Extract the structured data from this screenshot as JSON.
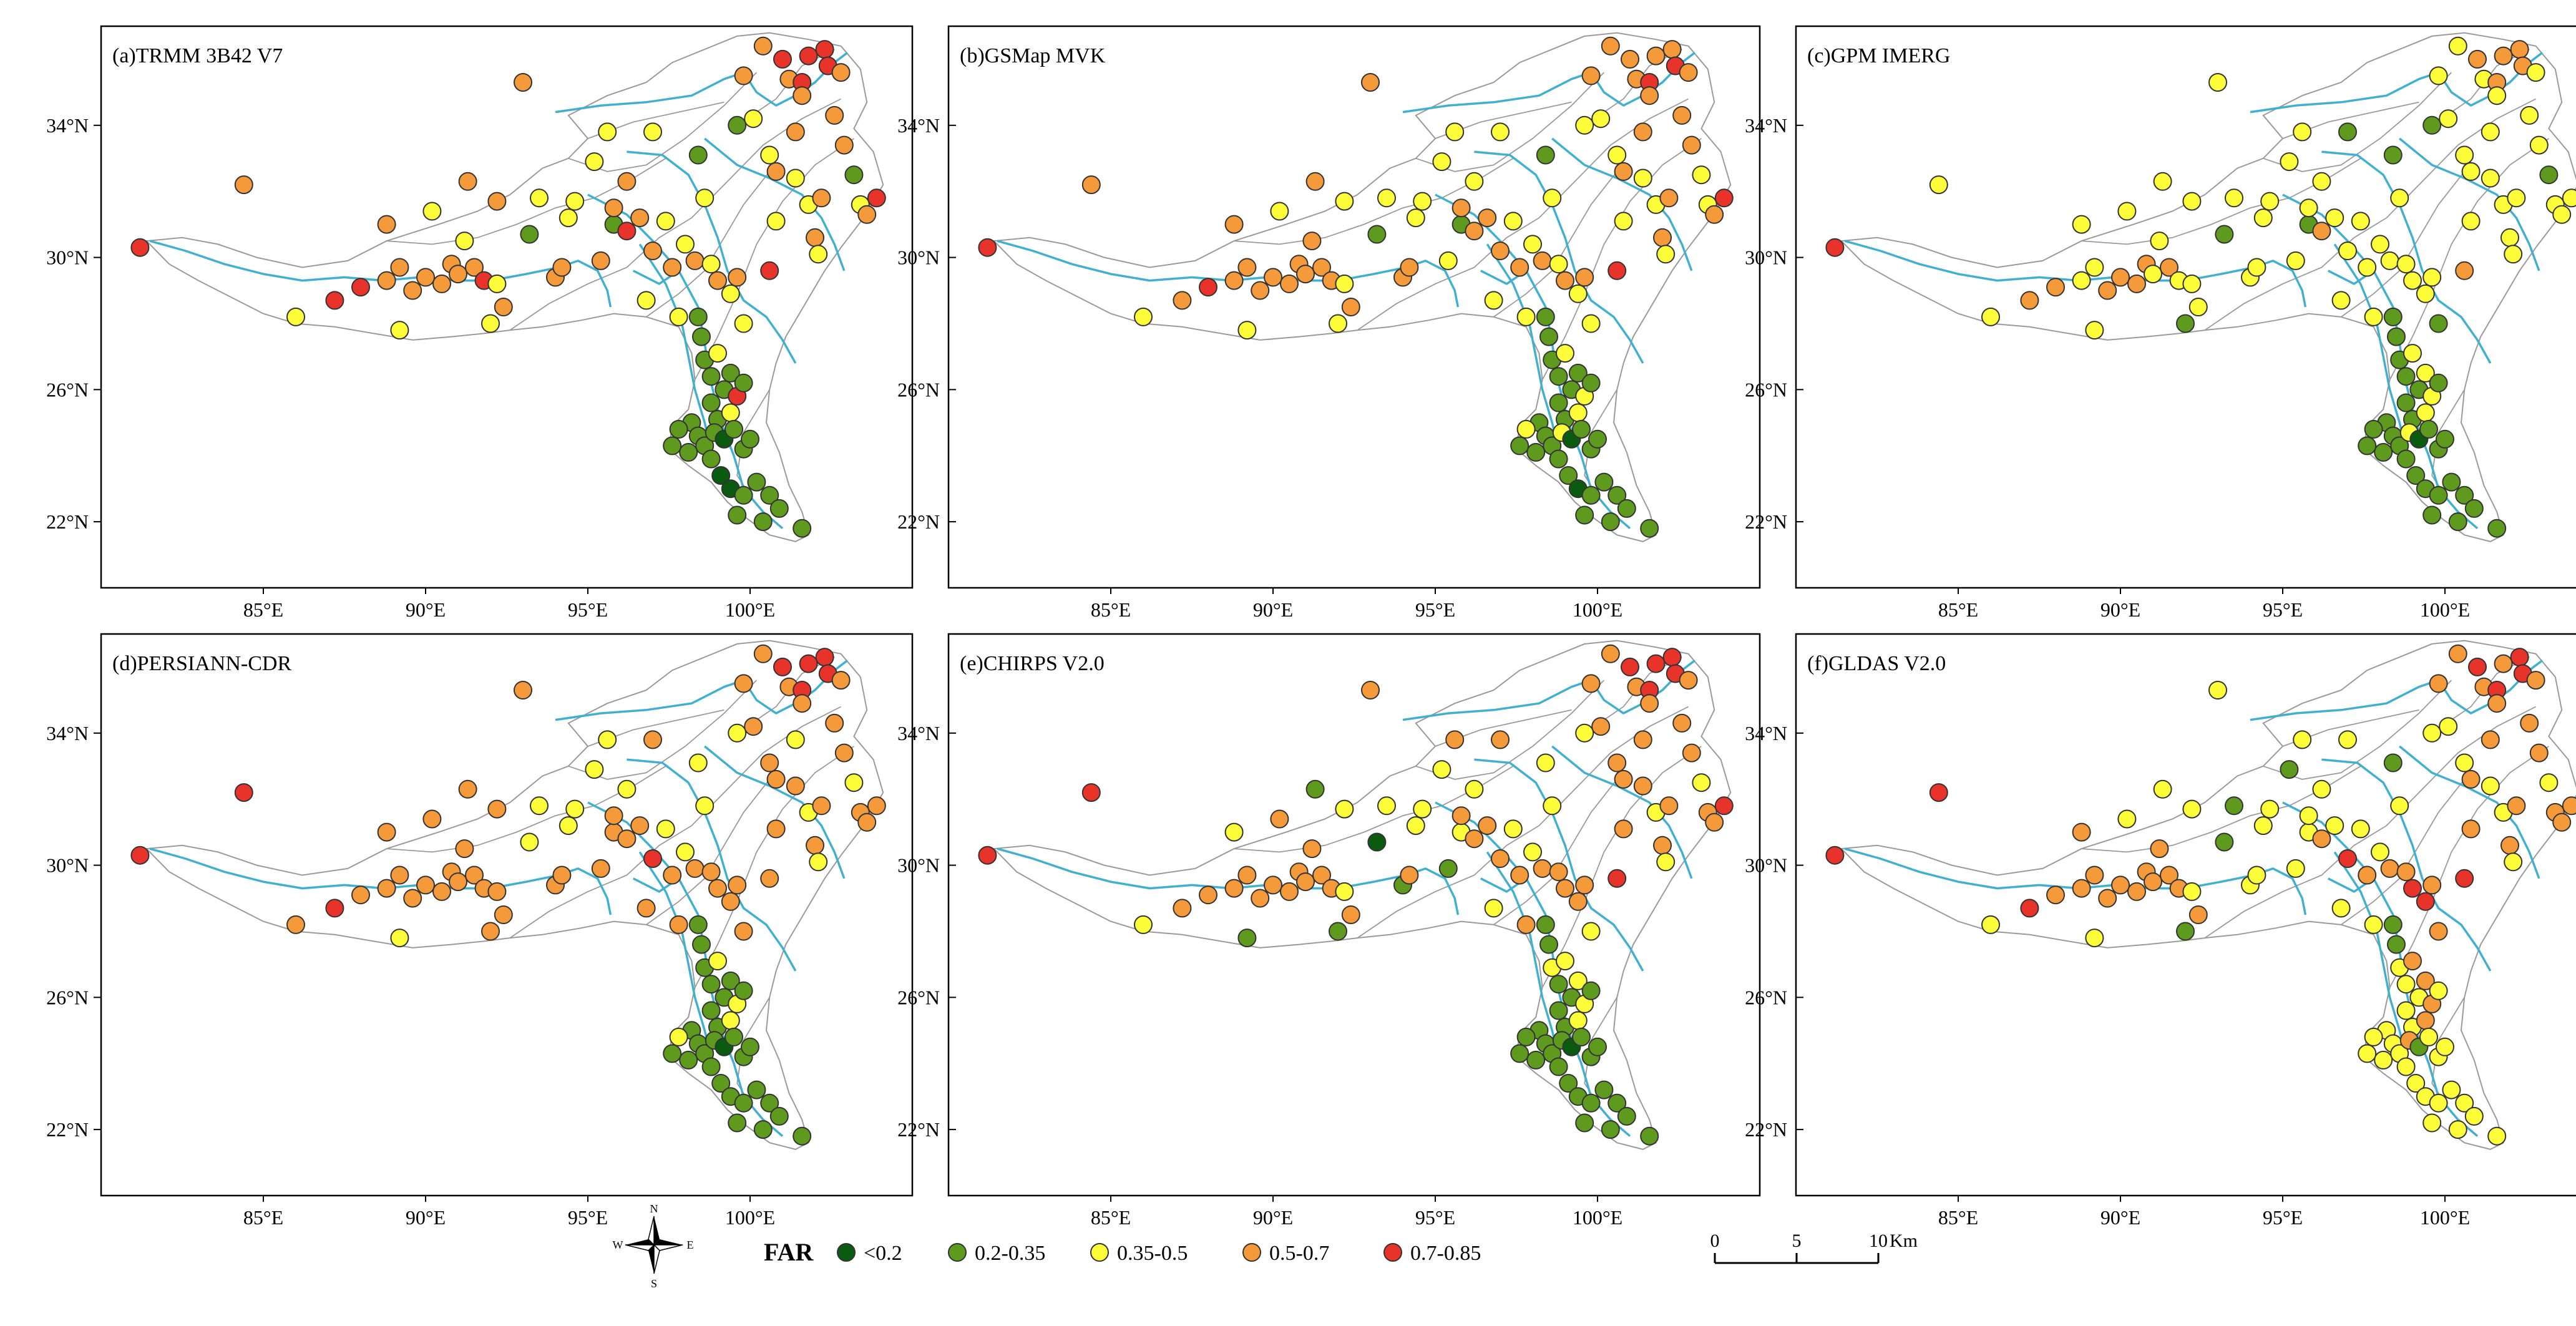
{
  "figure": {
    "tick_labels": {
      "lat": [
        "34°N",
        "30°N",
        "26°N",
        "22°N"
      ],
      "lon": [
        "85°E",
        "90°E",
        "95°E",
        "100°E"
      ]
    },
    "panels": [
      {
        "id": "a",
        "title": "(a)TRMM 3B42 V7"
      },
      {
        "id": "b",
        "title": "(b)GSMap MVK"
      },
      {
        "id": "c",
        "title": "(c)GPM IMERG"
      },
      {
        "id": "d",
        "title": "(d)PERSIANN-CDR"
      },
      {
        "id": "e",
        "title": "(e)CHIRPS V2.0"
      },
      {
        "id": "f",
        "title": "(f)GLDAS V2.0"
      }
    ],
    "colors": {
      "river": "#3fb0d0",
      "boundary": "#9a9a9a",
      "classes": [
        "#0a5a10",
        "#5e9a1e",
        "#fdfd3a",
        "#f49a3a",
        "#e8332a"
      ]
    }
  },
  "legend": {
    "title": "FAR",
    "items": [
      {
        "label": "<0.2",
        "color": "#0a5a10"
      },
      {
        "label": "0.2-0.35",
        "color": "#5e9a1e"
      },
      {
        "label": "0.35-0.5",
        "color": "#fdfd3a"
      },
      {
        "label": "0.5-0.7",
        "color": "#f49a3a"
      },
      {
        "label": "0.7-0.85",
        "color": "#e8332a"
      }
    ]
  },
  "compass": {
    "n": "N",
    "s": "S",
    "e": "E",
    "w": "W"
  },
  "scale_bar": {
    "labels": [
      "0",
      "5",
      "10"
    ],
    "unit": "Km"
  },
  "stations": [
    [
      81.2,
      30.3
    ],
    [
      84.4,
      32.2
    ],
    [
      86.0,
      28.2
    ],
    [
      87.2,
      28.7
    ],
    [
      88.0,
      29.1
    ],
    [
      88.8,
      29.3
    ],
    [
      88.8,
      31.0
    ],
    [
      89.2,
      29.7
    ],
    [
      89.2,
      27.8
    ],
    [
      89.6,
      29.0
    ],
    [
      90.0,
      29.4
    ],
    [
      90.2,
      31.4
    ],
    [
      90.5,
      29.2
    ],
    [
      90.8,
      29.8
    ],
    [
      91.0,
      29.5
    ],
    [
      91.2,
      30.5
    ],
    [
      91.3,
      32.3
    ],
    [
      91.5,
      29.7
    ],
    [
      91.8,
      29.3
    ],
    [
      92.2,
      31.7
    ],
    [
      92.0,
      28.0
    ],
    [
      92.4,
      28.5
    ],
    [
      92.2,
      29.2
    ],
    [
      93.0,
      35.3
    ],
    [
      93.2,
      30.7
    ],
    [
      93.5,
      31.8
    ],
    [
      94.0,
      29.4
    ],
    [
      94.2,
      29.7
    ],
    [
      94.4,
      31.2
    ],
    [
      94.6,
      31.7
    ],
    [
      95.2,
      32.9
    ],
    [
      95.4,
      29.9
    ],
    [
      95.6,
      33.8
    ],
    [
      95.8,
      31.0
    ],
    [
      95.8,
      31.5
    ],
    [
      96.2,
      30.8
    ],
    [
      96.2,
      32.3
    ],
    [
      96.6,
      31.2
    ],
    [
      96.8,
      28.7
    ],
    [
      97.0,
      30.2
    ],
    [
      97.0,
      33.8
    ],
    [
      97.4,
      31.1
    ],
    [
      97.6,
      29.7
    ],
    [
      97.8,
      28.2
    ],
    [
      98.0,
      30.4
    ],
    [
      98.3,
      29.9
    ],
    [
      98.4,
      33.1
    ],
    [
      98.6,
      31.8
    ],
    [
      98.8,
      29.8
    ],
    [
      99.0,
      29.3
    ],
    [
      99.4,
      28.9
    ],
    [
      99.6,
      29.4
    ],
    [
      99.6,
      34.0
    ],
    [
      99.8,
      35.5
    ],
    [
      99.8,
      28.0
    ],
    [
      100.1,
      34.2
    ],
    [
      100.4,
      36.4
    ],
    [
      100.6,
      29.6
    ],
    [
      100.6,
      33.1
    ],
    [
      100.8,
      32.6
    ],
    [
      100.8,
      31.1
    ],
    [
      101.0,
      36.0
    ],
    [
      101.2,
      35.4
    ],
    [
      101.4,
      32.4
    ],
    [
      101.4,
      33.8
    ],
    [
      101.6,
      35.3
    ],
    [
      101.6,
      34.9
    ],
    [
      101.8,
      36.1
    ],
    [
      101.8,
      31.6
    ],
    [
      102.0,
      30.6
    ],
    [
      102.1,
      30.1
    ],
    [
      102.2,
      31.8
    ],
    [
      102.3,
      36.3
    ],
    [
      102.4,
      35.8
    ],
    [
      102.6,
      34.3
    ],
    [
      102.8,
      35.6
    ],
    [
      102.9,
      33.4
    ],
    [
      103.2,
      32.5
    ],
    [
      103.4,
      31.6
    ],
    [
      103.6,
      31.3
    ],
    [
      103.9,
      31.8
    ],
    [
      98.4,
      28.2
    ],
    [
      98.5,
      27.6
    ],
    [
      98.6,
      26.9
    ],
    [
      98.8,
      26.4
    ],
    [
      99.0,
      27.1
    ],
    [
      99.2,
      26.0
    ],
    [
      99.4,
      26.5
    ],
    [
      98.8,
      25.6
    ],
    [
      99.0,
      25.1
    ],
    [
      99.4,
      25.3
    ],
    [
      99.6,
      25.8
    ],
    [
      99.8,
      26.2
    ],
    [
      98.2,
      25.0
    ],
    [
      98.4,
      24.6
    ],
    [
      98.6,
      24.3
    ],
    [
      98.9,
      24.7
    ],
    [
      99.2,
      24.5
    ],
    [
      99.5,
      24.8
    ],
    [
      99.8,
      24.2
    ],
    [
      100.0,
      24.5
    ],
    [
      97.6,
      24.3
    ],
    [
      97.8,
      24.8
    ],
    [
      98.1,
      24.1
    ],
    [
      98.8,
      23.9
    ],
    [
      99.1,
      23.4
    ],
    [
      99.4,
      23.0
    ],
    [
      99.8,
      22.8
    ],
    [
      100.2,
      23.2
    ],
    [
      100.6,
      22.8
    ],
    [
      99.6,
      22.2
    ],
    [
      100.4,
      22.0
    ],
    [
      100.9,
      22.4
    ],
    [
      101.6,
      21.8
    ]
  ],
  "far_classes": {
    "a": [
      4,
      3,
      2,
      4,
      4,
      3,
      3,
      3,
      2,
      3,
      3,
      2,
      3,
      3,
      3,
      2,
      3,
      3,
      4,
      3,
      2,
      3,
      2,
      3,
      1,
      2,
      3,
      3,
      2,
      2,
      2,
      3,
      2,
      1,
      3,
      4,
      3,
      3,
      2,
      3,
      2,
      2,
      3,
      2,
      2,
      3,
      1,
      2,
      2,
      3,
      2,
      3,
      1,
      3,
      2,
      2,
      3,
      4,
      2,
      3,
      2,
      4,
      3,
      2,
      3,
      4,
      3,
      4,
      2,
      3,
      2,
      3,
      4,
      4,
      3,
      3,
      3,
      1,
      2,
      3,
      4,
      1,
      1,
      1,
      1,
      2,
      1,
      1,
      1,
      1,
      2,
      4,
      1,
      1,
      1,
      1,
      1,
      0,
      1,
      1,
      1,
      1,
      1,
      1,
      1,
      0,
      0,
      1,
      1,
      1,
      1,
      1,
      1,
      1
    ],
    "b": [
      4,
      3,
      2,
      3,
      4,
      3,
      3,
      3,
      2,
      3,
      3,
      2,
      3,
      3,
      3,
      3,
      3,
      3,
      3,
      2,
      2,
      3,
      2,
      3,
      1,
      2,
      3,
      3,
      2,
      2,
      2,
      2,
      2,
      1,
      3,
      3,
      2,
      3,
      2,
      3,
      2,
      2,
      3,
      2,
      2,
      3,
      1,
      2,
      2,
      3,
      2,
      3,
      2,
      3,
      2,
      2,
      3,
      4,
      2,
      3,
      2,
      3,
      3,
      2,
      3,
      4,
      3,
      3,
      2,
      3,
      2,
      3,
      3,
      4,
      3,
      3,
      3,
      2,
      2,
      3,
      4,
      1,
      1,
      1,
      1,
      2,
      1,
      1,
      1,
      1,
      2,
      2,
      1,
      1,
      1,
      1,
      2,
      0,
      1,
      1,
      1,
      1,
      2,
      1,
      1,
      1,
      0,
      1,
      1,
      1,
      1,
      1,
      1,
      1
    ],
    "c": [
      4,
      2,
      2,
      3,
      3,
      2,
      2,
      2,
      2,
      3,
      3,
      2,
      3,
      3,
      2,
      2,
      2,
      3,
      2,
      2,
      1,
      2,
      2,
      2,
      1,
      2,
      2,
      2,
      2,
      2,
      2,
      2,
      2,
      1,
      2,
      3,
      2,
      2,
      2,
      2,
      1,
      2,
      2,
      2,
      2,
      2,
      1,
      2,
      2,
      2,
      2,
      2,
      1,
      2,
      1,
      2,
      2,
      3,
      2,
      2,
      2,
      3,
      2,
      2,
      2,
      3,
      2,
      3,
      2,
      2,
      2,
      2,
      3,
      3,
      2,
      2,
      2,
      1,
      2,
      2,
      2,
      1,
      1,
      1,
      1,
      2,
      1,
      2,
      1,
      1,
      2,
      2,
      1,
      1,
      1,
      1,
      2,
      0,
      1,
      1,
      1,
      1,
      1,
      1,
      1,
      1,
      1,
      1,
      1,
      1,
      1,
      1,
      1,
      1
    ],
    "d": [
      4,
      4,
      3,
      4,
      3,
      3,
      3,
      3,
      2,
      3,
      3,
      3,
      3,
      3,
      3,
      3,
      3,
      3,
      3,
      3,
      3,
      3,
      3,
      3,
      2,
      2,
      3,
      3,
      2,
      2,
      2,
      3,
      2,
      3,
      3,
      3,
      2,
      3,
      3,
      4,
      3,
      2,
      3,
      3,
      2,
      3,
      2,
      2,
      3,
      3,
      3,
      3,
      2,
      3,
      3,
      3,
      3,
      3,
      3,
      3,
      3,
      4,
      3,
      3,
      2,
      4,
      3,
      4,
      2,
      3,
      2,
      3,
      4,
      4,
      3,
      3,
      3,
      2,
      3,
      3,
      3,
      1,
      1,
      1,
      1,
      2,
      1,
      1,
      1,
      1,
      2,
      2,
      1,
      1,
      1,
      1,
      1,
      0,
      1,
      1,
      1,
      1,
      2,
      1,
      1,
      1,
      1,
      1,
      1,
      1,
      1,
      1,
      1,
      1
    ],
    "e": [
      4,
      4,
      2,
      3,
      3,
      3,
      2,
      3,
      1,
      3,
      3,
      3,
      3,
      3,
      3,
      3,
      1,
      3,
      3,
      2,
      1,
      3,
      2,
      3,
      0,
      2,
      1,
      3,
      2,
      2,
      2,
      1,
      3,
      2,
      3,
      3,
      2,
      3,
      2,
      3,
      3,
      2,
      3,
      3,
      2,
      3,
      2,
      2,
      3,
      3,
      3,
      3,
      2,
      3,
      2,
      3,
      3,
      4,
      3,
      3,
      3,
      4,
      3,
      3,
      3,
      4,
      3,
      4,
      2,
      3,
      2,
      3,
      4,
      4,
      3,
      3,
      3,
      2,
      3,
      3,
      4,
      1,
      1,
      2,
      1,
      2,
      1,
      2,
      1,
      1,
      2,
      2,
      1,
      1,
      1,
      1,
      1,
      0,
      1,
      1,
      1,
      1,
      1,
      1,
      1,
      1,
      1,
      1,
      1,
      1,
      1,
      1,
      1,
      1
    ],
    "f": [
      4,
      4,
      2,
      4,
      3,
      3,
      3,
      3,
      2,
      3,
      3,
      2,
      3,
      3,
      3,
      3,
      2,
      3,
      3,
      2,
      1,
      3,
      2,
      2,
      1,
      1,
      2,
      2,
      2,
      2,
      1,
      2,
      2,
      2,
      2,
      3,
      2,
      2,
      2,
      4,
      2,
      2,
      3,
      2,
      2,
      3,
      1,
      2,
      3,
      4,
      4,
      3,
      2,
      3,
      3,
      2,
      3,
      4,
      2,
      3,
      3,
      4,
      3,
      2,
      3,
      4,
      3,
      3,
      2,
      3,
      2,
      3,
      4,
      4,
      3,
      3,
      3,
      2,
      3,
      3,
      3,
      1,
      1,
      2,
      2,
      3,
      2,
      3,
      2,
      2,
      3,
      3,
      2,
      2,
      2,
      2,
      3,
      1,
      2,
      2,
      2,
      2,
      2,
      2,
      2,
      2,
      2,
      2,
      2,
      2,
      2,
      2,
      2,
      2
    ]
  }
}
